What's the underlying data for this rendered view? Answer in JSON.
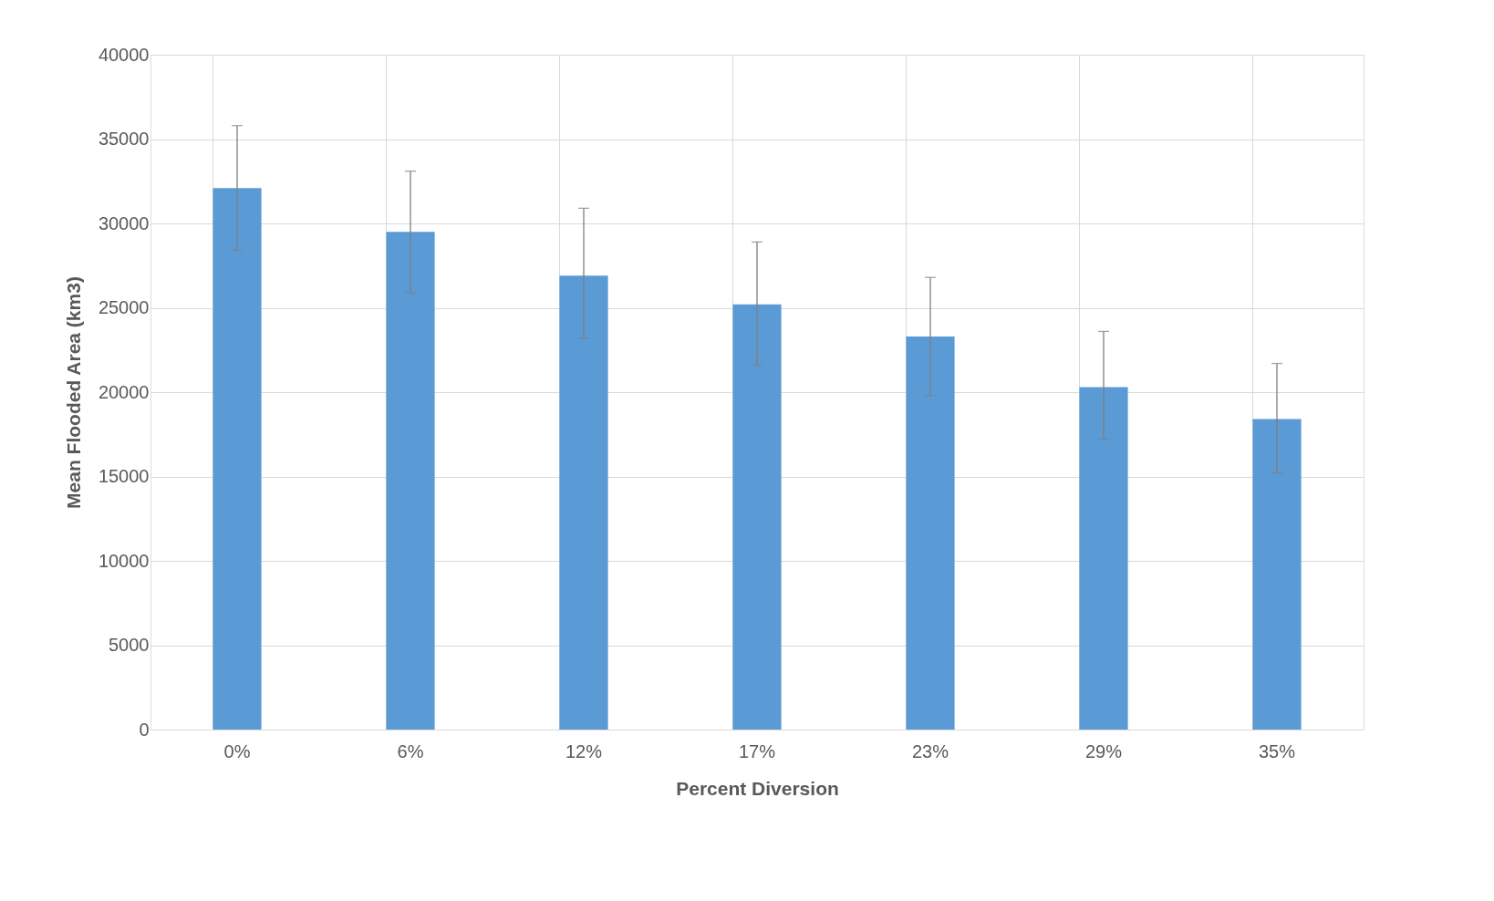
{
  "chart_data": {
    "type": "bar",
    "xlabel": "Percent Diversion",
    "ylabel": "Mean Flooded Area (km3)",
    "categories": [
      "0%",
      "6%",
      "12%",
      "17%",
      "23%",
      "29%",
      "35%"
    ],
    "values": [
      32100,
      29500,
      26900,
      25200,
      23300,
      20300,
      18400
    ],
    "errors": [
      [
        28400,
        35800
      ],
      [
        25900,
        33100
      ],
      [
        23200,
        30900
      ],
      [
        21600,
        28900
      ],
      [
        19800,
        26800
      ],
      [
        17200,
        23600
      ],
      [
        15200,
        21700
      ]
    ],
    "color": "#5b9bd5",
    "ylim": [
      0,
      40000
    ],
    "yticks": [
      0,
      5000,
      10000,
      15000,
      20000,
      25000,
      30000,
      35000,
      40000
    ],
    "grid": true
  }
}
